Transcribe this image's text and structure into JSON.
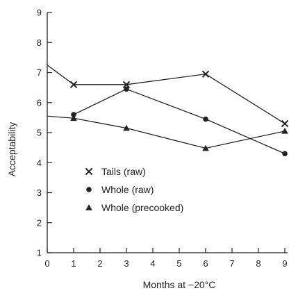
{
  "chart_data": {
    "type": "line",
    "title": "",
    "xlabel": "Months at −20°C",
    "ylabel": "Acceptability",
    "xlim": [
      0,
      9
    ],
    "ylim": [
      1,
      9
    ],
    "xticks": [
      0,
      1,
      2,
      3,
      4,
      5,
      6,
      7,
      8,
      9
    ],
    "yticks": [
      1,
      2,
      3,
      4,
      5,
      6,
      7,
      8,
      9
    ],
    "grid": false,
    "legend_position": "lower-left",
    "series": [
      {
        "name": "Tails (raw)",
        "marker": "x",
        "x": [
          0,
          1,
          3,
          6,
          9
        ],
        "y": [
          7.25,
          6.6,
          6.6,
          6.95,
          5.3
        ]
      },
      {
        "name": "Whole (raw)",
        "marker": "circle",
        "x": [
          1,
          3,
          6,
          9
        ],
        "y": [
          5.6,
          6.45,
          5.45,
          4.3
        ]
      },
      {
        "name": "Whole (precooked)",
        "marker": "triangle",
        "x": [
          0,
          1,
          3,
          6,
          9
        ],
        "y": [
          5.55,
          5.48,
          5.15,
          4.48,
          5.05
        ]
      }
    ]
  }
}
